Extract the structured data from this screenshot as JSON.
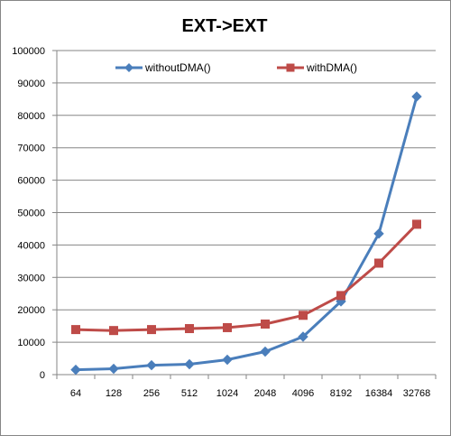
{
  "chart_data": {
    "type": "line",
    "title": "EXT->EXT",
    "xlabel": "",
    "ylabel": "",
    "categories": [
      "64",
      "128",
      "256",
      "512",
      "1024",
      "2048",
      "4096",
      "8192",
      "16384",
      "32768"
    ],
    "ylim": [
      0,
      100000
    ],
    "yticks": [
      0,
      10000,
      20000,
      30000,
      40000,
      50000,
      60000,
      70000,
      80000,
      90000,
      100000
    ],
    "grid": true,
    "legend_position": "top",
    "series": [
      {
        "name": "withoutDMA()",
        "color": "#4a7ebb",
        "marker": "diamond",
        "values": [
          1500,
          1800,
          2900,
          3200,
          4600,
          7100,
          11700,
          22600,
          43500,
          85800
        ]
      },
      {
        "name": "withDMA()",
        "color": "#be4b48",
        "marker": "square",
        "values": [
          13900,
          13600,
          13900,
          14200,
          14500,
          15600,
          18300,
          24400,
          34400,
          46400
        ]
      }
    ]
  }
}
